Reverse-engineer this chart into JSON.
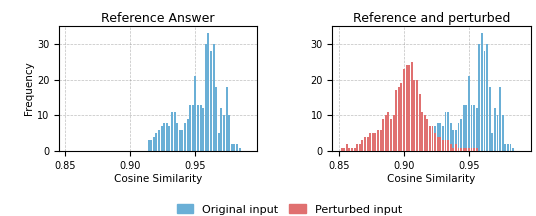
{
  "title1": "Reference Answer",
  "title2": "Reference and perturbed",
  "xlabel": "Cosine Similarity",
  "ylabel": "Frequency",
  "xlim": [
    0.845,
    0.9975
  ],
  "ylim": [
    0,
    35
  ],
  "yticks": [
    0,
    10.0,
    20.0,
    30.0
  ],
  "xticks": [
    0.85,
    0.9,
    0.95
  ],
  "bin_width": 0.0015,
  "blue_color": "#6aafd6",
  "red_color": "#e07070",
  "legend_blue": "Original input",
  "legend_red": "Perturbed input",
  "blue_bins": [
    0.914,
    0.916,
    0.918,
    0.92,
    0.922,
    0.924,
    0.926,
    0.928,
    0.93,
    0.932,
    0.934,
    0.936,
    0.938,
    0.94,
    0.942,
    0.944,
    0.946,
    0.948,
    0.95,
    0.952,
    0.954,
    0.956,
    0.958,
    0.96,
    0.962,
    0.964,
    0.966,
    0.968,
    0.97,
    0.972,
    0.974,
    0.976,
    0.978,
    0.98,
    0.982,
    0.984
  ],
  "blue_heights": [
    3,
    3,
    4,
    5,
    6,
    7,
    8,
    8,
    7,
    11,
    11,
    8,
    6,
    6,
    8,
    9,
    13,
    13,
    21,
    13,
    13,
    12,
    30,
    33,
    28,
    30,
    18,
    5,
    12,
    10,
    18,
    10,
    2,
    2,
    2,
    1
  ],
  "red_bins": [
    0.852,
    0.854,
    0.856,
    0.858,
    0.86,
    0.862,
    0.864,
    0.866,
    0.868,
    0.87,
    0.872,
    0.874,
    0.876,
    0.878,
    0.88,
    0.882,
    0.884,
    0.886,
    0.888,
    0.89,
    0.892,
    0.894,
    0.896,
    0.898,
    0.9,
    0.902,
    0.904,
    0.906,
    0.908,
    0.91,
    0.912,
    0.914,
    0.916,
    0.918,
    0.92,
    0.922,
    0.924,
    0.926,
    0.928,
    0.93,
    0.932,
    0.934,
    0.936,
    0.938,
    0.94,
    0.942,
    0.944,
    0.946,
    0.948,
    0.95,
    0.952,
    0.954,
    0.956
  ],
  "red_heights": [
    1,
    1,
    2,
    1,
    1,
    1,
    2,
    2,
    3,
    4,
    4,
    5,
    5,
    5,
    6,
    6,
    9,
    10,
    11,
    9,
    10,
    17,
    18,
    19,
    23,
    24,
    24,
    25,
    20,
    20,
    16,
    11,
    10,
    9,
    7,
    7,
    5,
    4,
    4,
    3,
    3,
    3,
    2,
    1,
    2,
    1,
    1,
    1,
    1,
    1,
    1,
    1,
    1
  ]
}
